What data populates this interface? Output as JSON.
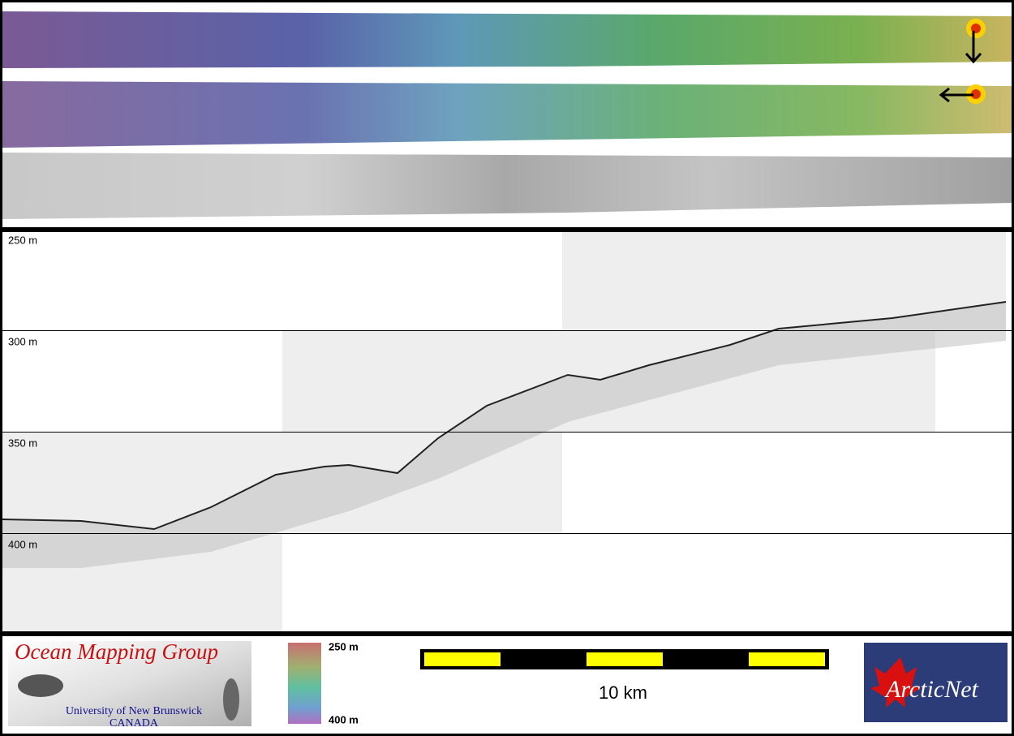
{
  "profile": {
    "depth_labels": [
      "250 m",
      "300 m",
      "350 m",
      "400 m"
    ]
  },
  "colorbar": {
    "top_label": "250 m",
    "bottom_label": "400 m"
  },
  "scale_bar": {
    "label": "10 km"
  },
  "logos": {
    "omg": {
      "title": "Ocean Mapping Group",
      "line1": "University of New Brunswick",
      "line2": "CANADA"
    },
    "arcticnet": {
      "title": "ArcticNet"
    }
  }
}
